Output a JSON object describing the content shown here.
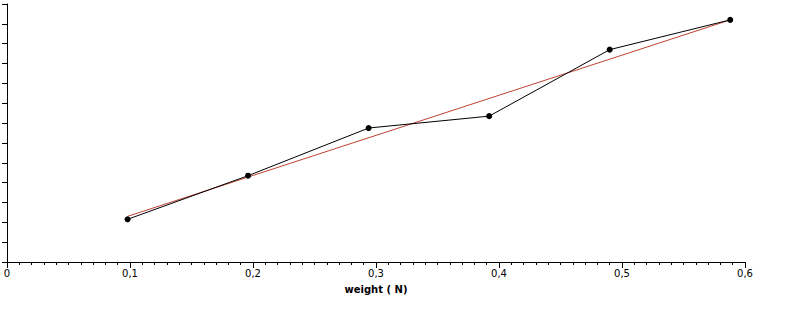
{
  "chart_data": {
    "type": "line",
    "x_label": "weight ( N)",
    "series": [
      {
        "color": "#000000",
        "marker": "circle",
        "line_style": "solid",
        "x": [
          0.098,
          0.196,
          0.294,
          0.392,
          0.49,
          0.588
        ],
        "values": [
          4.3,
          8.7,
          13.5,
          14.7,
          21.4,
          24.4
        ]
      },
      {
        "color": "#c04030",
        "marker": "none",
        "line_style": "solid",
        "x": [
          0.098,
          0.588
        ],
        "values": [
          4.6,
          24.4
        ]
      }
    ],
    "xlim": [
      0,
      0.6
    ],
    "xticks": [
      0,
      {
        "value": 0.1,
        "label": "0,1"
      },
      {
        "value": 0.2,
        "label": "0,2"
      },
      {
        "value": 0.3,
        "label": "0,3"
      },
      {
        "value": 0.4,
        "label": "0,4"
      },
      {
        "value": 0.5,
        "label": "0,5"
      },
      {
        "value": 0.6,
        "label": "0,6"
      }
    ],
    "ylim": [
      0,
      26
    ],
    "yticks": [
      0,
      2,
      4,
      6,
      8,
      10,
      12,
      14,
      16,
      18,
      20,
      22,
      24,
      26
    ],
    "grid": false,
    "tick_labels": "x"
  }
}
